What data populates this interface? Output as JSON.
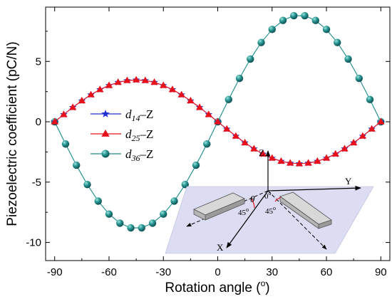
{
  "chart_data": {
    "type": "line",
    "xlabel_main": "Rotation angle (",
    "xlabel_unit": "o",
    "xlabel_close": ")",
    "ylabel": "Piezoelectric coefficient (pC/N)",
    "xlim": [
      -95,
      95
    ],
    "ylim": [
      -11.5,
      9.5
    ],
    "x_ticks": [
      -90,
      -60,
      -30,
      0,
      30,
      60,
      90
    ],
    "x_tick_labels": [
      "-90",
      "-60",
      "-30",
      "0",
      "30",
      "60",
      "90"
    ],
    "y_ticks": [
      -10,
      -5,
      0,
      5
    ],
    "y_tick_labels": [
      "-10",
      "-5",
      "0",
      "5"
    ],
    "grid": false,
    "legend_position": "left-center",
    "series": [
      {
        "name_sym": "d",
        "name_sub": "14",
        "name_suffix": "–Z",
        "marker": "star",
        "color": "#1f2fd0",
        "x": [
          -90,
          -85,
          -80,
          -75,
          -70,
          -65,
          -60,
          -55,
          -50,
          -45,
          -40,
          -35,
          -30,
          -25,
          -20,
          -15,
          -10,
          -5,
          0,
          5,
          10,
          15,
          20,
          25,
          30,
          35,
          40,
          45,
          50,
          55,
          60,
          65,
          70,
          75,
          80,
          85,
          90
        ],
        "y": [
          0,
          0.6,
          1.19,
          1.74,
          2.24,
          2.67,
          3.01,
          3.27,
          3.42,
          3.47,
          3.42,
          3.27,
          3.01,
          2.67,
          2.24,
          1.74,
          1.19,
          0.6,
          0,
          -0.6,
          -1.19,
          -1.74,
          -2.24,
          -2.67,
          -3.01,
          -3.27,
          -3.42,
          -3.47,
          -3.42,
          -3.27,
          -3.01,
          -2.67,
          -2.24,
          -1.74,
          -1.19,
          -0.6,
          0
        ]
      },
      {
        "name_sym": "d",
        "name_sub": "25",
        "name_suffix": "–Z",
        "marker": "triangle",
        "color": "#e8101a",
        "x": [
          -90,
          -85,
          -80,
          -75,
          -70,
          -65,
          -60,
          -55,
          -50,
          -45,
          -40,
          -35,
          -30,
          -25,
          -20,
          -15,
          -10,
          -5,
          0,
          5,
          10,
          15,
          20,
          25,
          30,
          35,
          40,
          45,
          50,
          55,
          60,
          65,
          70,
          75,
          80,
          85,
          90
        ],
        "y": [
          0,
          0.6,
          1.19,
          1.74,
          2.24,
          2.67,
          3.01,
          3.27,
          3.42,
          3.47,
          3.42,
          3.27,
          3.01,
          2.67,
          2.24,
          1.74,
          1.19,
          0.6,
          0,
          -0.6,
          -1.19,
          -1.74,
          -2.24,
          -2.67,
          -3.01,
          -3.27,
          -3.42,
          -3.47,
          -3.42,
          -3.27,
          -3.01,
          -2.67,
          -2.24,
          -1.74,
          -1.19,
          -0.6,
          0
        ]
      },
      {
        "name_sym": "d",
        "name_sub": "36",
        "name_suffix": "–Z",
        "marker": "sphere",
        "color": "#1a8a8a",
        "x": [
          -90,
          -84,
          -78,
          -72,
          -66,
          -60,
          -54,
          -48,
          -42,
          -36,
          -30,
          -24,
          -18,
          -12,
          -6,
          0,
          6,
          12,
          18,
          24,
          30,
          36,
          42,
          48,
          54,
          60,
          66,
          72,
          78,
          84,
          90
        ],
        "y": [
          0,
          -1.84,
          -3.6,
          -5.2,
          -6.57,
          -7.65,
          -8.4,
          -8.79,
          -8.79,
          -8.4,
          -7.65,
          -6.57,
          -5.2,
          -3.6,
          -1.84,
          0,
          1.84,
          3.6,
          5.2,
          6.57,
          7.65,
          8.4,
          8.79,
          8.79,
          8.4,
          7.65,
          6.57,
          5.2,
          3.6,
          1.84,
          0
        ]
      }
    ],
    "inset": {
      "axis_z": "Z",
      "axis_y": "Y",
      "axis_x": "X",
      "theta": "θ",
      "zero": "0",
      "zero_sup": "o",
      "angle_a": "45",
      "angle_b": "45",
      "angle_sup": "o"
    }
  }
}
